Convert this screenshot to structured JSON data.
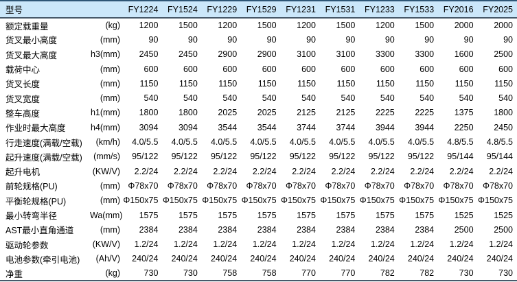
{
  "colors": {
    "header_bg": "#cbe7fa",
    "top_border": "#2e5676",
    "rule": "#47596a"
  },
  "table": {
    "header": {
      "model_label": "型号",
      "unit_label": "",
      "models": [
        "FY1224",
        "FY1524",
        "FY1229",
        "FY1529",
        "FY1231",
        "FY1531",
        "FY1233",
        "FY1533",
        "FY2016",
        "FY2025"
      ]
    },
    "rows": [
      {
        "label": "额定载重量",
        "unit": "(kg)",
        "values": [
          "1200",
          "1500",
          "1200",
          "1500",
          "1200",
          "1500",
          "1200",
          "1500",
          "2000",
          "2000"
        ]
      },
      {
        "label": "货叉最小高度",
        "unit": "(mm)",
        "values": [
          "90",
          "90",
          "90",
          "90",
          "90",
          "90",
          "90",
          "90",
          "90",
          "90"
        ]
      },
      {
        "label": "货叉最大高度",
        "unit": "h3(mm)",
        "values": [
          "2450",
          "2450",
          "2900",
          "2900",
          "3100",
          "3100",
          "3300",
          "3300",
          "1600",
          "2500"
        ]
      },
      {
        "label": "载荷中心",
        "unit": "(mm)",
        "values": [
          "600",
          "600",
          "600",
          "600",
          "600",
          "600",
          "600",
          "600",
          "600",
          "600"
        ]
      },
      {
        "label": "货叉长度",
        "unit": "(mm)",
        "values": [
          "1150",
          "1150",
          "1150",
          "1150",
          "1150",
          "1150",
          "1150",
          "1150",
          "1150",
          "1150"
        ]
      },
      {
        "label": "货叉宽度",
        "unit": "(mm)",
        "values": [
          "540",
          "540",
          "540",
          "540",
          "540",
          "540",
          "540",
          "540",
          "540",
          "540"
        ]
      },
      {
        "label": "整车高度",
        "unit": "h1(mm)",
        "values": [
          "1800",
          "1800",
          "2025",
          "2025",
          "2125",
          "2125",
          "2225",
          "2225",
          "1375",
          "1800"
        ]
      },
      {
        "label": "作业时最大高度",
        "unit": "h4(mm)",
        "values": [
          "3094",
          "3094",
          "3544",
          "3544",
          "3744",
          "3744",
          "3944",
          "3944",
          "2250",
          "2450"
        ]
      },
      {
        "label": "行走速度(满载/空载)",
        "unit": "(km/h)",
        "values": [
          "4.0/5.5",
          "4.0/5.5",
          "4.0/5.5",
          "4.0/5.5",
          "4.0/5.5",
          "4.0/5.5",
          "4.0/5.5",
          "4.0/5.5",
          "4.8/5.5",
          "4.8/5.5"
        ]
      },
      {
        "label": "起升速度(满载/空载)",
        "unit": "(mm/s)",
        "values": [
          "95/122",
          "95/122",
          "95/122",
          "95/122",
          "95/122",
          "95/122",
          "95/122",
          "95/122",
          "95/144",
          "95/144"
        ]
      },
      {
        "label": "起升电机",
        "unit": "(KW/V)",
        "values": [
          "2.2/24",
          "2.2/24",
          "2.2/24",
          "2.2/24",
          "2.2/24",
          "2.2/24",
          "2.2/24",
          "2.2/24",
          "2.2/24",
          "2.2/24"
        ]
      },
      {
        "label": "前轮规格(PU)",
        "unit": "(mm)",
        "values": [
          "Φ78x70",
          "Φ78x70",
          "Φ78x70",
          "Φ78x70",
          "Φ78x70",
          "Φ78x70",
          "Φ78x70",
          "Φ78x70",
          "Φ78x70",
          "Φ78x70"
        ]
      },
      {
        "label": "平衡轮规格(PU)",
        "unit": "(mm)",
        "values": [
          "Φ150x75",
          "Φ150x75",
          "Φ150x75",
          "Φ150x75",
          "Φ150x75",
          "Φ150x75",
          "Φ150x75",
          "Φ150x75",
          "Φ150x75",
          "Φ150x75"
        ]
      },
      {
        "label": "最小转弯半径",
        "unit": "Wa(mm)",
        "values": [
          "1575",
          "1575",
          "1575",
          "1575",
          "1575",
          "1575",
          "1575",
          "1575",
          "1525",
          "1525"
        ]
      },
      {
        "label": "AST最小直角通道",
        "unit": "(mm)",
        "values": [
          "2384",
          "2384",
          "2384",
          "2384",
          "2384",
          "2384",
          "2384",
          "2384",
          "2500",
          "2500"
        ]
      },
      {
        "label": "驱动轮参数",
        "unit": "(KW/V)",
        "values": [
          "1.2/24",
          "1.2/24",
          "1.2/24",
          "1.2/24",
          "1.2/24",
          "1.2/24",
          "1.2/24",
          "1.2/24",
          "1.2/24",
          "1.2/24"
        ]
      },
      {
        "label": "电池参数(牵引电池)",
        "unit": "(Ah/V)",
        "values": [
          "240/24",
          "240/24",
          "240/24",
          "240/24",
          "240/24",
          "240/24",
          "240/24",
          "240/24",
          "240/24",
          "240/24"
        ]
      },
      {
        "label": "净重",
        "unit": "(kg)",
        "values": [
          "730",
          "730",
          "758",
          "758",
          "770",
          "770",
          "782",
          "782",
          "730",
          "730"
        ]
      }
    ]
  }
}
